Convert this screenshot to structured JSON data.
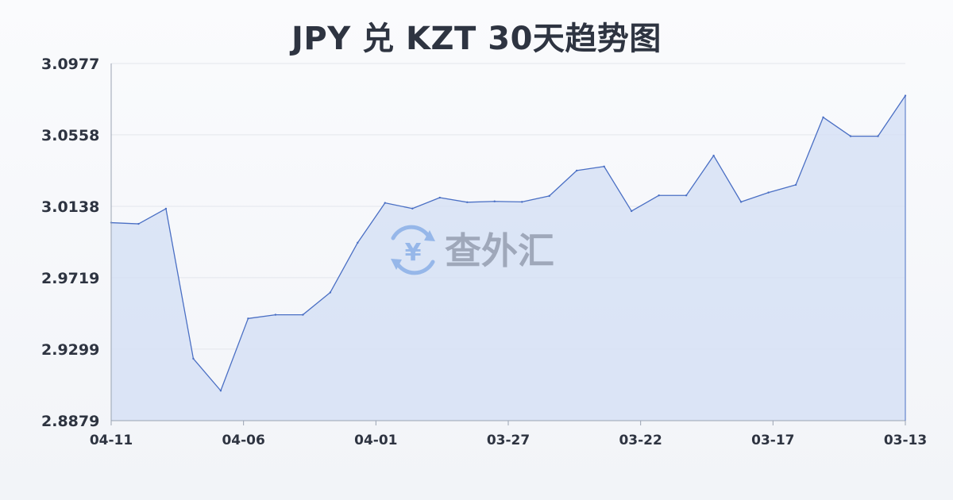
{
  "chart_data": {
    "type": "area",
    "title": "JPY 兑 KZT 30天趋势图",
    "xlabel": "",
    "ylabel": "",
    "x_ticks": [
      "04-11",
      "04-06",
      "04-01",
      "03-27",
      "03-22",
      "03-17",
      "03-13"
    ],
    "y_ticks": [
      3.0977,
      3.0558,
      3.0138,
      2.9719,
      2.9299,
      2.8879
    ],
    "ylim": [
      2.8879,
      3.0977
    ],
    "grid": true,
    "legend": "none",
    "colors": {
      "line": "#4a6fc4",
      "fill": "#d5e0f5",
      "grid": "#e3e6ec",
      "axis": "#9aa3b2"
    },
    "series": [
      {
        "values": [
          3.0042,
          3.0035,
          3.0124,
          2.9243,
          2.9055,
          2.9479,
          2.9501,
          2.9501,
          2.9632,
          2.9924,
          3.0158,
          3.0125,
          3.0189,
          3.0162,
          3.0167,
          3.0164,
          3.0199,
          3.0348,
          3.0372,
          3.011,
          3.0202,
          3.0202,
          3.0436,
          3.0164,
          3.0219,
          3.0264,
          3.0661,
          3.055,
          3.055,
          3.0788
        ]
      }
    ]
  },
  "watermark": {
    "text": "查外汇",
    "icon": "yen-exchange-icon"
  }
}
